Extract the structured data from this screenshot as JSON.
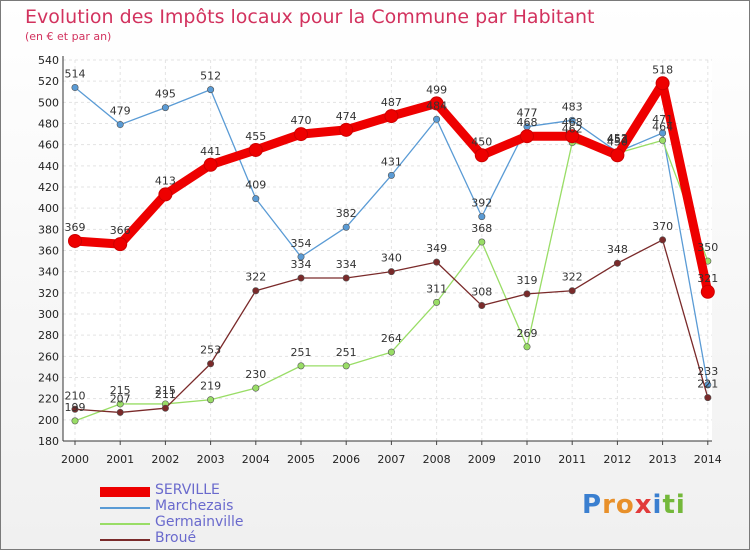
{
  "header": {
    "title": "Evolution des Impôts locaux pour la Commune par Habitant",
    "subtitle": "(en € et par an)"
  },
  "chart_data": {
    "type": "line",
    "title": "Evolution des Impôts locaux pour la Commune par Habitant",
    "subtitle": "(en € et par an)",
    "x": [
      "2000",
      "2001",
      "2002",
      "2003",
      "2004",
      "2005",
      "2006",
      "2007",
      "2008",
      "2009",
      "2010",
      "2011",
      "2012",
      "2013",
      "2014"
    ],
    "ylim": [
      180,
      540
    ],
    "yticks": [
      180,
      200,
      220,
      240,
      260,
      280,
      300,
      320,
      340,
      360,
      380,
      400,
      420,
      440,
      460,
      480,
      500,
      520,
      540
    ],
    "series": [
      {
        "name": "SERVILLE",
        "color": "#ee0000",
        "values": [
          369,
          366,
          413,
          441,
          455,
          470,
          474,
          487,
          499,
          450,
          468,
          468,
          450,
          518,
          321
        ]
      },
      {
        "name": "Marchezais",
        "color": "#5a9bd5",
        "values": [
          514,
          479,
          495,
          512,
          409,
          354,
          382,
          431,
          484,
          392,
          477,
          483,
          453,
          471,
          233
        ]
      },
      {
        "name": "Germainville",
        "color": "#99dd66",
        "values": [
          199,
          215,
          215,
          219,
          230,
          251,
          251,
          264,
          311,
          368,
          269,
          462,
          452,
          464,
          350
        ]
      },
      {
        "name": "Broué",
        "color": "#7a2a2a",
        "values": [
          210,
          207,
          211,
          253,
          322,
          334,
          334,
          340,
          349,
          308,
          319,
          322,
          348,
          370,
          221
        ]
      }
    ]
  },
  "legend": [
    {
      "label": "SERVILLE",
      "color": "#ee0000"
    },
    {
      "label": "Marchezais",
      "color": "#5a9bd5"
    },
    {
      "label": "Germainville",
      "color": "#99dd66"
    },
    {
      "label": "Broué",
      "color": "#7a2a2a"
    }
  ],
  "logo": {
    "parts": [
      "P",
      "r",
      "o",
      "x",
      "i",
      "t",
      "i"
    ],
    "colors": [
      "#3a7fd0",
      "#e8902a",
      "#e8902a",
      "#e23a3a",
      "#3a7fd0",
      "#74b83a",
      "#74b83a"
    ]
  }
}
